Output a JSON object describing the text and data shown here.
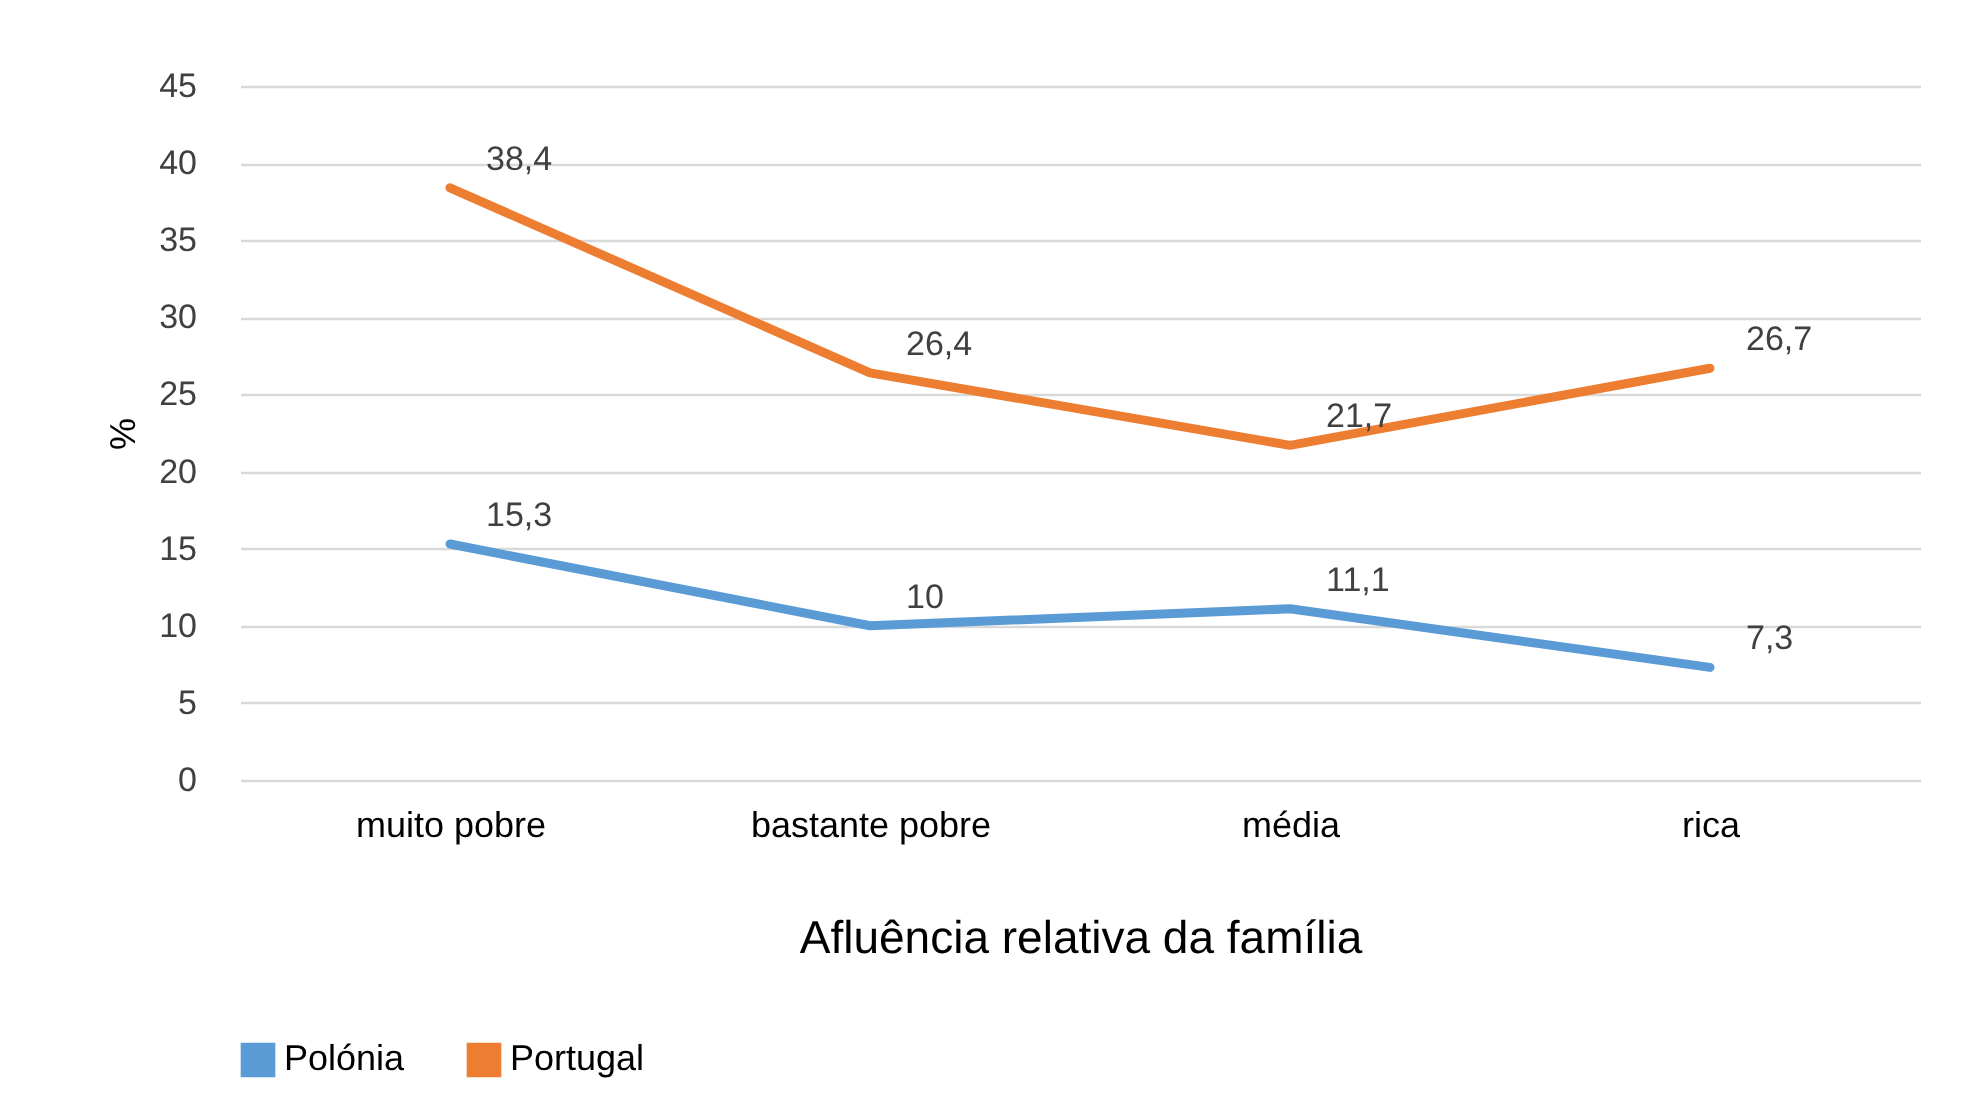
{
  "chart_data": {
    "type": "line",
    "xlabel": "Afluência relativa da família",
    "ylabel": "%",
    "categories": [
      "muito pobre",
      "bastante pobre",
      "média",
      "rica"
    ],
    "series": [
      {
        "name": "Polónia",
        "color": "#5b9bd5",
        "values": [
          15.3,
          10,
          11.1,
          7.3
        ],
        "value_labels": [
          "15,3",
          "10",
          "11,1",
          "7,3"
        ]
      },
      {
        "name": "Portugal",
        "color": "#ed7d31",
        "values": [
          38.4,
          26.4,
          21.7,
          26.7
        ],
        "value_labels": [
          "38,4",
          "26,4",
          "21,7",
          "26,7"
        ]
      }
    ],
    "ylim": [
      0,
      45
    ],
    "yticks": [
      0,
      5,
      10,
      15,
      20,
      25,
      30,
      35,
      40,
      45
    ],
    "grid": "y",
    "legend": "bottom",
    "marker": "none",
    "line_style": "solid"
  }
}
